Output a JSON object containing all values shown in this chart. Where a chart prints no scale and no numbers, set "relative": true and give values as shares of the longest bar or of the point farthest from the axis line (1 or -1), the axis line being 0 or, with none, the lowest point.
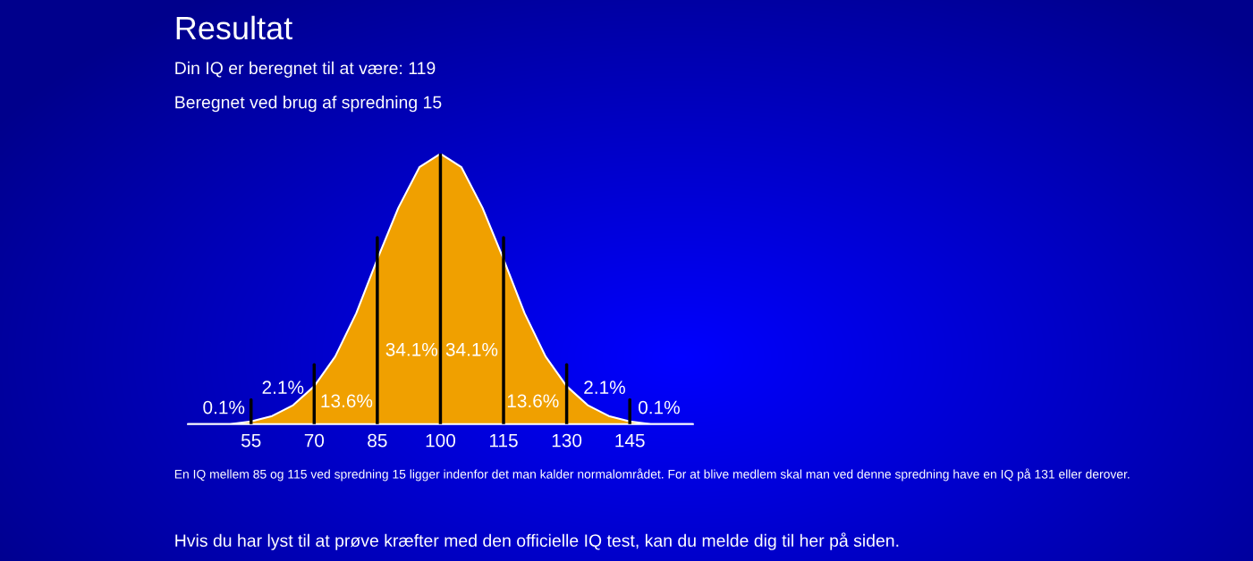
{
  "chart_data": {
    "type": "area",
    "title": "Resultat",
    "subtitle": "Din IQ er beregnet til at være: 119",
    "relative": true,
    "x": [
      40,
      45,
      50,
      55,
      60,
      65,
      70,
      75,
      80,
      85,
      90,
      95,
      100,
      105,
      110,
      115,
      120,
      125,
      130,
      135,
      140,
      145,
      150,
      155,
      160
    ],
    "series": [
      {
        "color": "#f0a000",
        "values": [
          0,
          0,
          0,
          0.01,
          0.03,
          0.07,
          0.14,
          0.25,
          0.41,
          0.61,
          0.8,
          0.95,
          1,
          0.95,
          0.8,
          0.61,
          0.41,
          0.25,
          0.14,
          0.07,
          0.03,
          0.01,
          0,
          0,
          0
        ]
      }
    ],
    "xlim": [
      40,
      160
    ],
    "xticks": [
      55,
      70,
      85,
      100,
      115,
      130,
      145
    ],
    "ref_lines": [
      {
        "axis": "x",
        "value": 55,
        "color": "#000000"
      },
      {
        "axis": "x",
        "value": 70,
        "color": "#000000"
      },
      {
        "axis": "x",
        "value": 85,
        "color": "#000000"
      },
      {
        "axis": "x",
        "value": 100,
        "color": "#000000"
      },
      {
        "axis": "x",
        "value": 115,
        "color": "#000000"
      },
      {
        "axis": "x",
        "value": 130,
        "color": "#000000"
      },
      {
        "axis": "x",
        "value": 145,
        "color": "#000000"
      }
    ],
    "annotations": [
      "Beregnet ved brug af spredning 15",
      "0.1%",
      "2.1%",
      "13.6%",
      "34.1%",
      "34.1%",
      "13.6%",
      "2.1%",
      "0.1%",
      "En IQ mellem 85 og 115 ved spredning 15 ligger indenfor det man kalder normalområdet. For at blive medlem skal man ved denne spredning have en IQ på 131 eller derover.",
      "Hvis du har lyst til at prøve kræfter med den officielle IQ test, kan du melde dig til her på siden."
    ]
  }
}
